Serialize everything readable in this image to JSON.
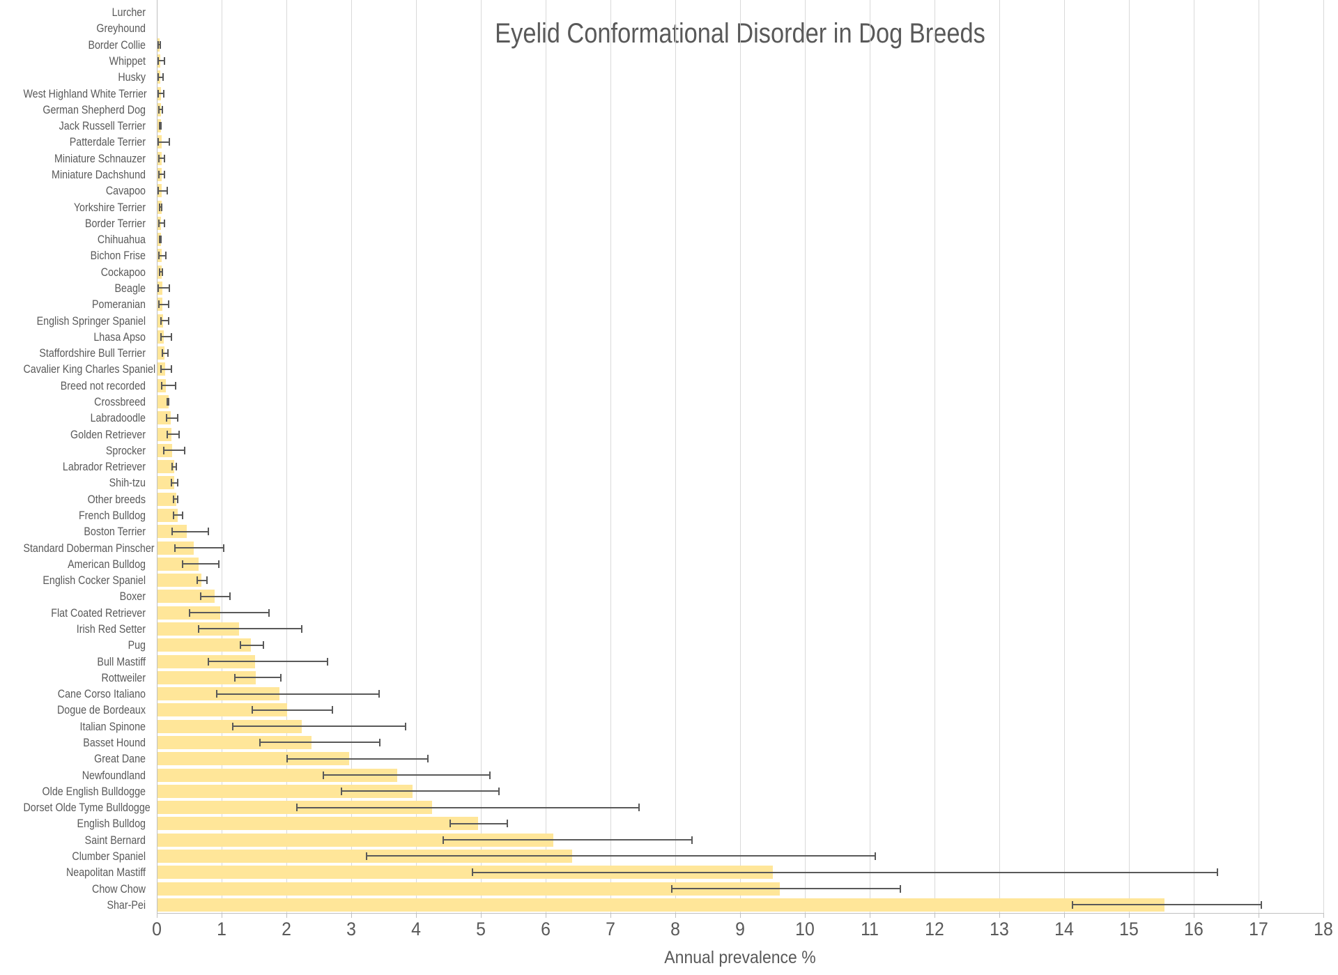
{
  "chart_data": {
    "type": "bar",
    "orientation": "horizontal",
    "title": "Eyelid Conformational Disorder in Dog Breeds",
    "xlabel": "Annual prevalence %",
    "xlim": [
      0,
      18
    ],
    "xticks": [
      0,
      1,
      2,
      3,
      4,
      5,
      6,
      7,
      8,
      9,
      10,
      11,
      12,
      13,
      14,
      15,
      16,
      17,
      18
    ],
    "grid": "vertical",
    "legend": "none",
    "error_bars": "horizontal 95% CI whiskers with end caps",
    "colors": {
      "bar_fill": "#FFE699",
      "error_bar": "#595959",
      "gridline": "#D9D9D9",
      "axis_line": "#BFBFBF",
      "text": "#595959",
      "background": "#FFFFFF"
    },
    "rows": [
      {
        "label": "Lurcher",
        "value": 0.005,
        "ci": null
      },
      {
        "label": "Greyhound",
        "value": 0.008,
        "ci": null
      },
      {
        "label": "Border Collie",
        "value": 0.03,
        "ci": [
          0.01,
          0.06
        ]
      },
      {
        "label": "Whippet",
        "value": 0.04,
        "ci": [
          0.01,
          0.13
        ]
      },
      {
        "label": "Husky",
        "value": 0.04,
        "ci": [
          0.01,
          0.11
        ]
      },
      {
        "label": "West Highland White Terrier",
        "value": 0.05,
        "ci": [
          0.01,
          0.12
        ]
      },
      {
        "label": "German Shepherd Dog",
        "value": 0.05,
        "ci": [
          0.02,
          0.1
        ]
      },
      {
        "label": "Jack Russell Terrier",
        "value": 0.05,
        "ci": [
          0.03,
          0.08
        ]
      },
      {
        "label": "Patterdale Terrier",
        "value": 0.06,
        "ci": [
          0.01,
          0.2
        ]
      },
      {
        "label": "Miniature Schnauzer",
        "value": 0.06,
        "ci": [
          0.02,
          0.13
        ]
      },
      {
        "label": "Miniature Dachshund",
        "value": 0.06,
        "ci": [
          0.02,
          0.13
        ]
      },
      {
        "label": "Cavapoo",
        "value": 0.06,
        "ci": [
          0.01,
          0.17
        ]
      },
      {
        "label": "Yorkshire Terrier",
        "value": 0.06,
        "ci": [
          0.03,
          0.09
        ]
      },
      {
        "label": "Border Terrier",
        "value": 0.05,
        "ci": [
          0.02,
          0.13
        ]
      },
      {
        "label": "Chihuahua",
        "value": 0.05,
        "ci": [
          0.03,
          0.08
        ]
      },
      {
        "label": "Bichon Frise",
        "value": 0.06,
        "ci": [
          0.02,
          0.15
        ]
      },
      {
        "label": "Cockapoo",
        "value": 0.06,
        "ci": [
          0.03,
          0.1
        ]
      },
      {
        "label": "Beagle",
        "value": 0.07,
        "ci": [
          0.01,
          0.2
        ]
      },
      {
        "label": "Pomeranian",
        "value": 0.08,
        "ci": [
          0.02,
          0.19
        ]
      },
      {
        "label": "English Springer Spaniel",
        "value": 0.09,
        "ci": [
          0.05,
          0.19
        ]
      },
      {
        "label": "Lhasa Apso",
        "value": 0.1,
        "ci": [
          0.05,
          0.24
        ]
      },
      {
        "label": "Staffordshire Bull Terrier",
        "value": 0.11,
        "ci": [
          0.07,
          0.18
        ]
      },
      {
        "label": "Cavalier King Charles Spaniel",
        "value": 0.12,
        "ci": [
          0.05,
          0.24
        ]
      },
      {
        "label": "Breed not recorded",
        "value": 0.13,
        "ci": [
          0.06,
          0.3
        ]
      },
      {
        "label": "Crossbreed",
        "value": 0.17,
        "ci": [
          0.15,
          0.19
        ]
      },
      {
        "label": "Labradoodle",
        "value": 0.2,
        "ci": [
          0.14,
          0.33
        ]
      },
      {
        "label": "Golden Retriever",
        "value": 0.21,
        "ci": [
          0.15,
          0.35
        ]
      },
      {
        "label": "Sprocker",
        "value": 0.23,
        "ci": [
          0.1,
          0.44
        ]
      },
      {
        "label": "Labrador Retriever",
        "value": 0.26,
        "ci": [
          0.22,
          0.31
        ]
      },
      {
        "label": "Shih-tzu",
        "value": 0.26,
        "ci": [
          0.21,
          0.33
        ]
      },
      {
        "label": "Other breeds",
        "value": 0.29,
        "ci": [
          0.25,
          0.33
        ]
      },
      {
        "label": "French Bulldog",
        "value": 0.31,
        "ci": [
          0.25,
          0.41
        ]
      },
      {
        "label": "Boston Terrier",
        "value": 0.45,
        "ci": [
          0.22,
          0.81
        ]
      },
      {
        "label": "Standard Doberman Pinscher",
        "value": 0.56,
        "ci": [
          0.27,
          1.04
        ]
      },
      {
        "label": "American Bulldog",
        "value": 0.63,
        "ci": [
          0.39,
          0.97
        ]
      },
      {
        "label": "English Cocker Spaniel",
        "value": 0.68,
        "ci": [
          0.61,
          0.78
        ]
      },
      {
        "label": "Boxer",
        "value": 0.88,
        "ci": [
          0.67,
          1.14
        ]
      },
      {
        "label": "Flat Coated Retriever",
        "value": 0.97,
        "ci": [
          0.49,
          1.74
        ]
      },
      {
        "label": "Irish Red Setter",
        "value": 1.26,
        "ci": [
          0.63,
          2.25
        ]
      },
      {
        "label": "Pug",
        "value": 1.44,
        "ci": [
          1.28,
          1.66
        ]
      },
      {
        "label": "Bull Mastiff",
        "value": 1.51,
        "ci": [
          0.78,
          2.64
        ]
      },
      {
        "label": "Rottweiler",
        "value": 1.52,
        "ci": [
          1.19,
          1.92
        ]
      },
      {
        "label": "Cane Corso Italiano",
        "value": 1.88,
        "ci": [
          0.91,
          3.44
        ]
      },
      {
        "label": "Dogue de Bordeaux",
        "value": 2.0,
        "ci": [
          1.46,
          2.72
        ]
      },
      {
        "label": "Italian Spinone",
        "value": 2.22,
        "ci": [
          1.16,
          3.85
        ]
      },
      {
        "label": "Basset Hound",
        "value": 2.38,
        "ci": [
          1.58,
          3.45
        ]
      },
      {
        "label": "Great Dane",
        "value": 2.96,
        "ci": [
          2.0,
          4.19
        ]
      },
      {
        "label": "Newfoundland",
        "value": 3.7,
        "ci": [
          2.56,
          5.15
        ]
      },
      {
        "label": "Olde English Bulldogge",
        "value": 3.93,
        "ci": [
          2.84,
          5.29
        ]
      },
      {
        "label": "Dorset Olde Tyme Bulldogge",
        "value": 4.24,
        "ci": [
          2.15,
          7.45
        ]
      },
      {
        "label": "English Bulldog",
        "value": 4.95,
        "ci": [
          4.52,
          5.42
        ]
      },
      {
        "label": "Saint Bernard",
        "value": 6.11,
        "ci": [
          4.41,
          8.27
        ]
      },
      {
        "label": "Clumber Spaniel",
        "value": 6.4,
        "ci": [
          3.23,
          11.1
        ]
      },
      {
        "label": "Neapolitan Mastiff",
        "value": 9.49,
        "ci": [
          4.86,
          16.38
        ]
      },
      {
        "label": "Chow Chow",
        "value": 9.6,
        "ci": [
          7.94,
          11.48
        ]
      },
      {
        "label": "Shar-Pei",
        "value": 15.54,
        "ci": [
          14.12,
          17.05
        ]
      }
    ]
  }
}
